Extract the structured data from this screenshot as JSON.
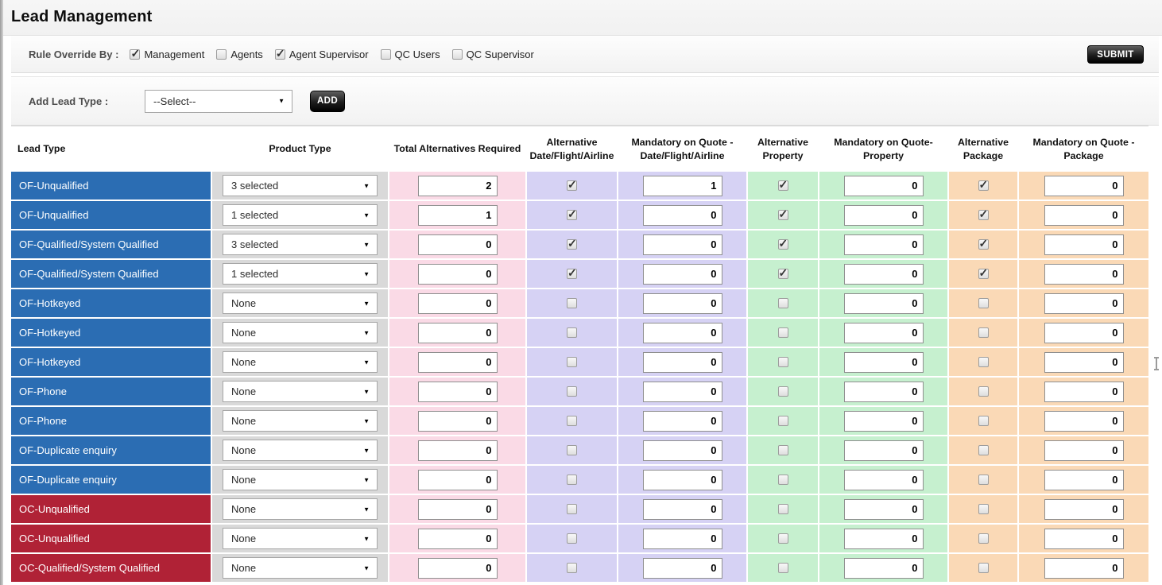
{
  "page": {
    "title": "Lead Management"
  },
  "colors": {
    "lead_blue": "#2b6db3",
    "lead_red": "#b02236",
    "product_gray": "#d9d9d9",
    "pink": "#fadae6",
    "lavender": "#d6d2f4",
    "green": "#c6f0cf",
    "peach": "#fad9b6"
  },
  "rule_override": {
    "label": "Rule Override By :",
    "options": [
      {
        "label": "Management",
        "checked": true
      },
      {
        "label": "Agents",
        "checked": false
      },
      {
        "label": "Agent Supervisor",
        "checked": true
      },
      {
        "label": "QC Users",
        "checked": false
      },
      {
        "label": "QC Supervisor",
        "checked": false
      }
    ],
    "submit_label": "SUBMIT"
  },
  "add_lead_type": {
    "label": "Add Lead Type :",
    "select_value": "--Select--",
    "add_label": "ADD"
  },
  "table": {
    "columns": [
      "Lead Type",
      "Product Type",
      "Total Alternatives Required",
      "Alternative\nDate/Flight/Airline",
      "Mandatory on Quote -\nDate/Flight/Airline",
      "Alternative\nProperty",
      "Mandatory on Quote-\nProperty",
      "Alternative\nPackage",
      "Mandatory on Quote -\nPackage"
    ],
    "rows": [
      {
        "lead_type": "OF-Unqualified",
        "color": "blue",
        "product_type": "3 selected",
        "total_alternatives_required": "2",
        "alt_date": true,
        "mand_date": "1",
        "alt_property": true,
        "mand_property": "0",
        "alt_package": true,
        "mand_package": "0"
      },
      {
        "lead_type": "OF-Unqualified",
        "color": "blue",
        "product_type": "1 selected",
        "total_alternatives_required": "1",
        "alt_date": true,
        "mand_date": "0",
        "alt_property": true,
        "mand_property": "0",
        "alt_package": true,
        "mand_package": "0"
      },
      {
        "lead_type": "OF-Qualified/System Qualified",
        "color": "blue",
        "product_type": "3 selected",
        "total_alternatives_required": "0",
        "alt_date": true,
        "mand_date": "0",
        "alt_property": true,
        "mand_property": "0",
        "alt_package": true,
        "mand_package": "0"
      },
      {
        "lead_type": "OF-Qualified/System Qualified",
        "color": "blue",
        "product_type": "1 selected",
        "total_alternatives_required": "0",
        "alt_date": true,
        "mand_date": "0",
        "alt_property": true,
        "mand_property": "0",
        "alt_package": true,
        "mand_package": "0"
      },
      {
        "lead_type": "OF-Hotkeyed",
        "color": "blue",
        "product_type": "None",
        "total_alternatives_required": "0",
        "alt_date": false,
        "mand_date": "0",
        "alt_property": false,
        "mand_property": "0",
        "alt_package": false,
        "mand_package": "0"
      },
      {
        "lead_type": "OF-Hotkeyed",
        "color": "blue",
        "product_type": "None",
        "total_alternatives_required": "0",
        "alt_date": false,
        "mand_date": "0",
        "alt_property": false,
        "mand_property": "0",
        "alt_package": false,
        "mand_package": "0"
      },
      {
        "lead_type": "OF-Hotkeyed",
        "color": "blue",
        "product_type": "None",
        "total_alternatives_required": "0",
        "alt_date": false,
        "mand_date": "0",
        "alt_property": false,
        "mand_property": "0",
        "alt_package": false,
        "mand_package": "0"
      },
      {
        "lead_type": "OF-Phone",
        "color": "blue",
        "product_type": "None",
        "total_alternatives_required": "0",
        "alt_date": false,
        "mand_date": "0",
        "alt_property": false,
        "mand_property": "0",
        "alt_package": false,
        "mand_package": "0"
      },
      {
        "lead_type": "OF-Phone",
        "color": "blue",
        "product_type": "None",
        "total_alternatives_required": "0",
        "alt_date": false,
        "mand_date": "0",
        "alt_property": false,
        "mand_property": "0",
        "alt_package": false,
        "mand_package": "0"
      },
      {
        "lead_type": "OF-Duplicate enquiry",
        "color": "blue",
        "product_type": "None",
        "total_alternatives_required": "0",
        "alt_date": false,
        "mand_date": "0",
        "alt_property": false,
        "mand_property": "0",
        "alt_package": false,
        "mand_package": "0"
      },
      {
        "lead_type": "OF-Duplicate enquiry",
        "color": "blue",
        "product_type": "None",
        "total_alternatives_required": "0",
        "alt_date": false,
        "mand_date": "0",
        "alt_property": false,
        "mand_property": "0",
        "alt_package": false,
        "mand_package": "0"
      },
      {
        "lead_type": "OC-Unqualified",
        "color": "red",
        "product_type": "None",
        "total_alternatives_required": "0",
        "alt_date": false,
        "mand_date": "0",
        "alt_property": false,
        "mand_property": "0",
        "alt_package": false,
        "mand_package": "0"
      },
      {
        "lead_type": "OC-Unqualified",
        "color": "red",
        "product_type": "None",
        "total_alternatives_required": "0",
        "alt_date": false,
        "mand_date": "0",
        "alt_property": false,
        "mand_property": "0",
        "alt_package": false,
        "mand_package": "0"
      },
      {
        "lead_type": "OC-Qualified/System Qualified",
        "color": "red",
        "product_type": "None",
        "total_alternatives_required": "0",
        "alt_date": false,
        "mand_date": "0",
        "alt_property": false,
        "mand_property": "0",
        "alt_package": false,
        "mand_package": "0"
      }
    ]
  }
}
